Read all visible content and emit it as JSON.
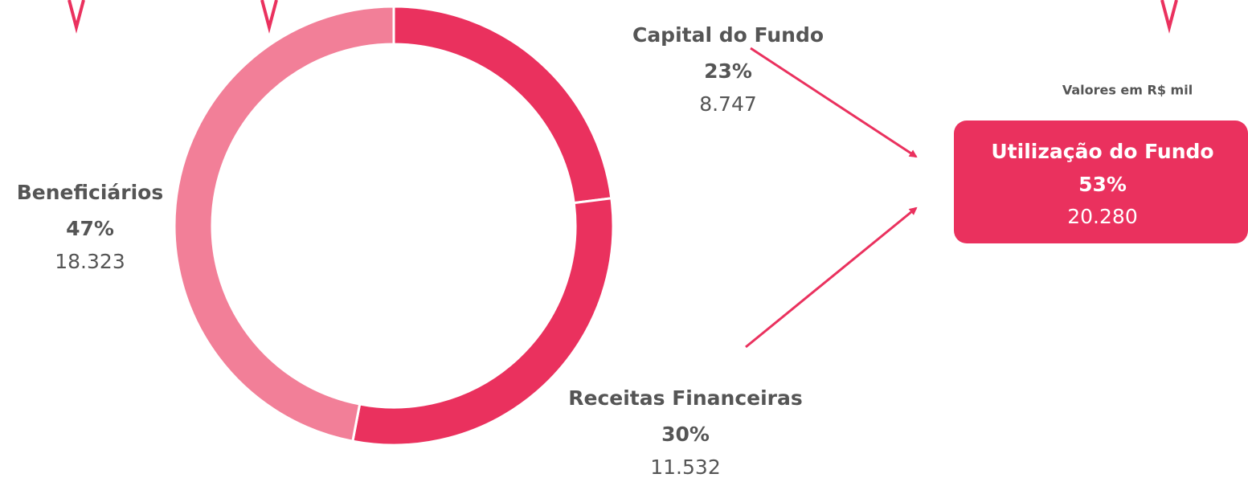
{
  "chart_data": {
    "type": "donut",
    "categories": [
      "Capital do Fundo",
      "Receitas Financeiras",
      "Beneficiários"
    ],
    "values": [
      23,
      30,
      47
    ],
    "value_labels": [
      "23%",
      "30%",
      "47%"
    ],
    "amount_labels": [
      "8.747",
      "11.532",
      "18.323"
    ],
    "colors": [
      "#ea315e",
      "#ea315e",
      "#f27f98"
    ],
    "note": "Valores em R$ mil",
    "total": {
      "label": "Utilização do Fundo",
      "percent": "53%",
      "amount": "20.280"
    }
  }
}
